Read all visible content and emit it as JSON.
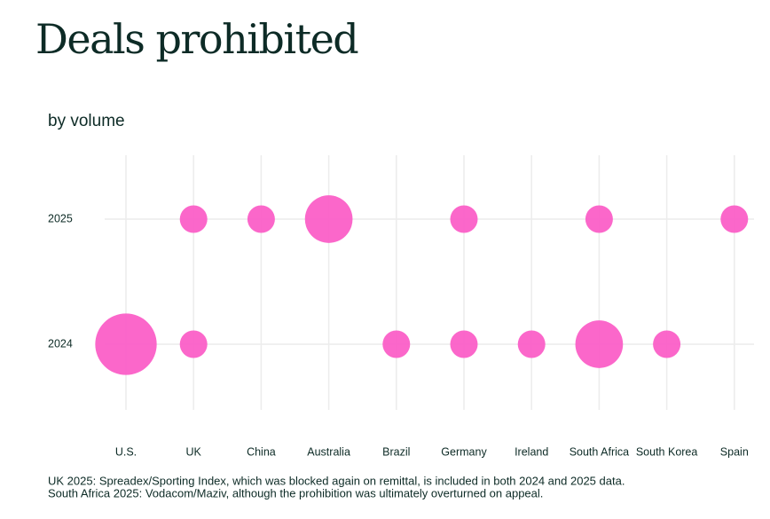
{
  "chart_data": {
    "type": "bubble",
    "title": "Deals prohibited",
    "subtitle": "by volume",
    "categories": [
      "U.S.",
      "UK",
      "China",
      "Australia",
      "Brazil",
      "Germany",
      "Ireland",
      "South Africa",
      "South Korea",
      "Spain"
    ],
    "series": [
      {
        "name": "2025",
        "color": "#fb5fc7",
        "values": [
          null,
          1,
          1,
          3,
          null,
          1,
          null,
          1,
          null,
          1
        ]
      },
      {
        "name": "2024",
        "color": "#fb5fc7",
        "values": [
          5,
          1,
          null,
          null,
          1,
          1,
          1,
          3,
          1,
          null
        ]
      }
    ],
    "grid": true,
    "notes": [
      "UK 2025: Spreadex/Sporting Index, which was blocked again on remittal, is included in both 2024 and 2025 data.",
      "South Africa 2025: Vodacom/Maziv, although the prohibition was ultimately overturned on appeal."
    ]
  }
}
